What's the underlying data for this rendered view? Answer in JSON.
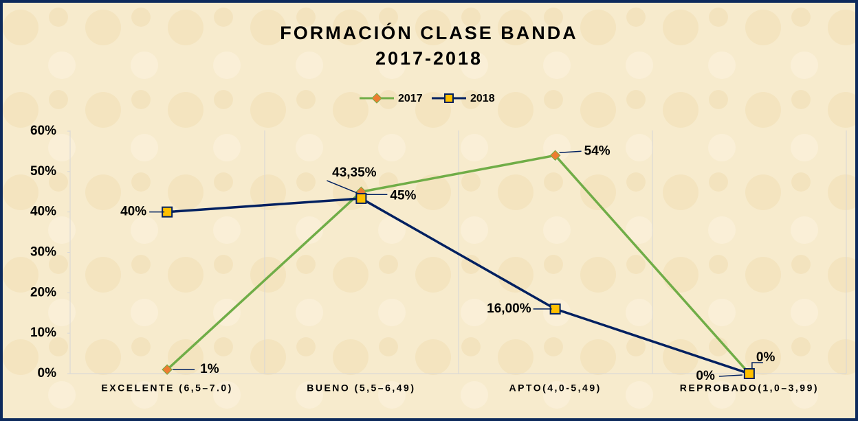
{
  "chart_data": {
    "type": "line",
    "title": [
      "FORMACIÓN CLASE BANDA",
      "2017-2018"
    ],
    "categories": [
      "EXCELENTE (6,5–7.0)",
      "BUENO (5,5–6,49)",
      "APTO(4,0-5,49)",
      "REPROBADO(1,0–3,99)"
    ],
    "series": [
      {
        "name": "2017",
        "color": "#70ad47",
        "values": [
          1,
          45,
          54,
          0
        ],
        "value_labels": [
          "1%",
          "45%",
          "54%",
          "0%"
        ]
      },
      {
        "name": "2018",
        "color": "#002060",
        "values": [
          40,
          43.35,
          16,
          0
        ],
        "value_labels": [
          "40%",
          "43,35%",
          "16,00%",
          "0%"
        ]
      }
    ],
    "ylim": [
      0,
      60
    ],
    "yticks": [
      {
        "value": 0,
        "label": "0%"
      },
      {
        "value": 10,
        "label": "10%"
      },
      {
        "value": 20,
        "label": "20%"
      },
      {
        "value": 30,
        "label": "30%"
      },
      {
        "value": 40,
        "label": "40%"
      },
      {
        "value": 50,
        "label": "50%"
      },
      {
        "value": 60,
        "label": "60%"
      }
    ],
    "legend": "top"
  }
}
